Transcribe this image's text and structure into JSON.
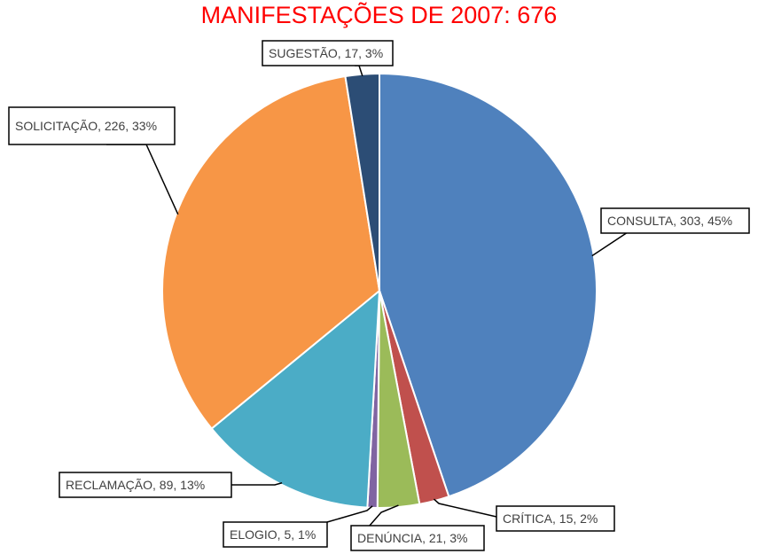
{
  "chart_data": {
    "type": "pie",
    "title": "MANIFESTAÇÕES DE 2007: 676",
    "start_angle_deg": 0,
    "direction": "clockwise",
    "slices": [
      {
        "name": "CONSULTA",
        "value": 303,
        "percent": "45%",
        "color": "#4F81BD",
        "label": "CONSULTA, 303, 45%"
      },
      {
        "name": "CRÍTICA",
        "value": 15,
        "percent": "2%",
        "color": "#C0504D",
        "label": "CRÍTICA, 15, 2%"
      },
      {
        "name": "DENÚNCIA",
        "value": 21,
        "percent": "3%",
        "color": "#9BBB59",
        "label": "DENÚNCIA, 21, 3%"
      },
      {
        "name": "ELOGIO",
        "value": 5,
        "percent": "1%",
        "color": "#8064A2",
        "label": "ELOGIO, 5, 1%"
      },
      {
        "name": "RECLAMAÇÃO",
        "value": 89,
        "percent": "13%",
        "color": "#4BACC6",
        "label": "RECLAMAÇÃO, 89, 13%"
      },
      {
        "name": "SOLICITAÇÃO",
        "value": 226,
        "percent": "33%",
        "color": "#F79646",
        "label": "SOLICITAÇÃO, 226, 33%"
      },
      {
        "name": "SUGESTÃO",
        "value": 17,
        "percent": "3%",
        "color": "#2C4D75",
        "label": "SUGESTÃO, 17, 3%"
      }
    ]
  }
}
